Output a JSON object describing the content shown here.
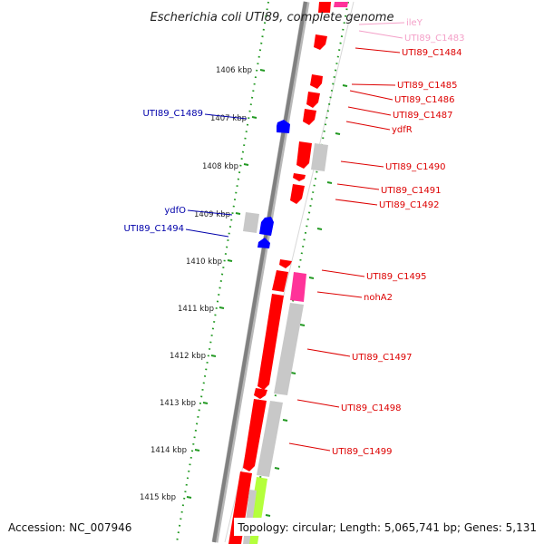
{
  "title": "Escherichia coli UTI89, complete genome",
  "accession": "Accession: NC_007946",
  "summary": "Topology: circular; Length: 5,065,741 bp; Genes: 5,131",
  "colors": {
    "forward": "#ff0000",
    "reverse": "#0000ff",
    "trna": "#ff3399",
    "other": "#b4ff3c",
    "grey": "#c8c8c8",
    "backbone": "#808080",
    "ruler": "#229922"
  },
  "ruler": {
    "ticks": [
      {
        "label": "1406 kbp"
      },
      {
        "label": "1407 kbp"
      },
      {
        "label": "1408 kbp"
      },
      {
        "label": "1409 kbp"
      },
      {
        "label": "1410 kbp"
      },
      {
        "label": "1411 kbp"
      },
      {
        "label": "1412 kbp"
      },
      {
        "label": "1413 kbp"
      },
      {
        "label": "1414 kbp"
      },
      {
        "label": "1415 kbp"
      }
    ]
  },
  "gene_labels": [
    {
      "label": "ileY",
      "color": "#f4a0c8"
    },
    {
      "label": "UTI89_C1483",
      "color": "#f4a0c8"
    },
    {
      "label": "UTI89_C1484",
      "color": "#dd0000"
    },
    {
      "label": "UTI89_C1485",
      "color": "#dd0000"
    },
    {
      "label": "UTI89_C1486",
      "color": "#dd0000"
    },
    {
      "label": "UTI89_C1487",
      "color": "#dd0000"
    },
    {
      "label": "ydfR",
      "color": "#dd0000"
    },
    {
      "label": "UTI89_C1490",
      "color": "#dd0000"
    },
    {
      "label": "UTI89_C1491",
      "color": "#dd0000"
    },
    {
      "label": "UTI89_C1492",
      "color": "#dd0000"
    },
    {
      "label": "UTI89_C1495",
      "color": "#dd0000"
    },
    {
      "label": "nohA2",
      "color": "#dd0000"
    },
    {
      "label": "UTI89_C1497",
      "color": "#dd0000"
    },
    {
      "label": "UTI89_C1498",
      "color": "#dd0000"
    },
    {
      "label": "UTI89_C1499",
      "color": "#dd0000"
    },
    {
      "label": "UTI89_C1489",
      "color": "#0000aa"
    },
    {
      "label": "ydfO",
      "color": "#0000aa"
    },
    {
      "label": "UTI89_C1494",
      "color": "#0000aa"
    }
  ]
}
